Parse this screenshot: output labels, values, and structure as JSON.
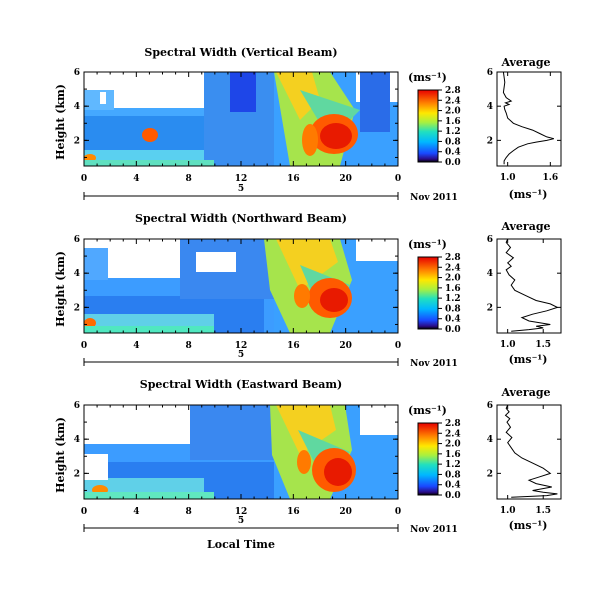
{
  "chart_data": [
    {
      "type": "heatmap",
      "title": "Spectral Width (Vertical Beam)",
      "ylabel": "Height (km)",
      "xticks": [
        "0",
        "4",
        "8",
        "12",
        "16",
        "20",
        "0"
      ],
      "yticks": [
        "2",
        "4",
        "6"
      ],
      "date_label": "Nov 2011",
      "day_label": "5",
      "colorbar_unit": "(ms⁻¹)",
      "colorbar_ticks": [
        "0.0",
        "0.4",
        "0.8",
        "1.2",
        "1.6",
        "2.0",
        "2.4",
        "2.8"
      ],
      "colorbar_range": [
        0.0,
        2.8
      ],
      "time_range_hours": [
        0,
        24
      ],
      "height_range_km": [
        0.5,
        6
      ]
    },
    {
      "type": "heatmap",
      "title": "Spectral Width (Northward Beam)",
      "ylabel": "Height (km)",
      "xticks": [
        "0",
        "4",
        "8",
        "12",
        "16",
        "20",
        "0"
      ],
      "yticks": [
        "2",
        "4",
        "6"
      ],
      "date_label": "Nov 2011",
      "day_label": "5",
      "colorbar_unit": "(ms⁻¹)",
      "colorbar_ticks": [
        "0.0",
        "0.4",
        "0.8",
        "1.2",
        "1.6",
        "2.0",
        "2.4",
        "2.8"
      ],
      "colorbar_range": [
        0.0,
        2.8
      ],
      "time_range_hours": [
        0,
        24
      ],
      "height_range_km": [
        0.5,
        6
      ]
    },
    {
      "type": "heatmap",
      "title": "Spectral Width (Eastward Beam)",
      "ylabel": "Height (km)",
      "xticks": [
        "0",
        "4",
        "8",
        "12",
        "16",
        "20",
        "0"
      ],
      "yticks": [
        "2",
        "4",
        "6"
      ],
      "date_label": "Nov 2011",
      "day_label": "5",
      "xlabel": "Local Time",
      "colorbar_unit": "(ms⁻¹)",
      "colorbar_ticks": [
        "0.0",
        "0.4",
        "0.8",
        "1.2",
        "1.6",
        "2.0",
        "2.4",
        "2.8"
      ],
      "colorbar_range": [
        0.0,
        2.8
      ],
      "time_range_hours": [
        0,
        24
      ],
      "height_range_km": [
        0.5,
        6
      ]
    },
    {
      "type": "line",
      "title": "Average",
      "xlabel": "(ms⁻¹)",
      "xticks": [
        "1.0",
        "1.6"
      ],
      "yticks": [
        "2",
        "4",
        "6"
      ],
      "x": [
        0.95,
        0.95,
        0.98,
        1.02,
        1.08,
        1.15,
        1.28,
        1.4,
        1.55,
        1.65,
        1.55,
        1.45,
        1.35,
        1.2,
        1.08,
        1.0,
        0.98,
        0.96,
        0.95,
        1.02,
        0.97,
        1.05,
        0.98,
        0.94,
        0.95,
        0.96,
        0.95,
        0.94
      ],
      "y": [
        0.6,
        0.8,
        1.0,
        1.2,
        1.4,
        1.6,
        1.8,
        1.9,
        2.0,
        2.1,
        2.2,
        2.4,
        2.6,
        2.8,
        3.0,
        3.3,
        3.6,
        3.8,
        4.0,
        4.1,
        4.2,
        4.3,
        4.5,
        4.8,
        5.1,
        5.4,
        5.7,
        6.0
      ],
      "xlim": [
        0.85,
        1.75
      ],
      "ylim": [
        0.5,
        6
      ]
    },
    {
      "type": "line",
      "title": "Average",
      "xlabel": "(ms⁻¹)",
      "xticks": [
        "1.0",
        "1.5"
      ],
      "yticks": [
        "2",
        "4",
        "6"
      ],
      "x": [
        1.05,
        1.3,
        1.5,
        1.4,
        1.6,
        1.45,
        1.3,
        1.2,
        1.35,
        1.55,
        1.7,
        1.6,
        1.4,
        1.25,
        1.1,
        1.05,
        1.1,
        1.02,
        0.98,
        1.05,
        1.0,
        1.08,
        0.98,
        1.04,
        0.98,
        1.0
      ],
      "y": [
        0.6,
        0.7,
        0.8,
        0.9,
        1.0,
        1.1,
        1.2,
        1.4,
        1.6,
        1.8,
        2.0,
        2.2,
        2.4,
        2.7,
        3.0,
        3.3,
        3.6,
        3.9,
        4.2,
        4.4,
        4.6,
        4.9,
        5.2,
        5.5,
        5.8,
        6.0
      ],
      "xlim": [
        0.85,
        1.75
      ],
      "ylim": [
        0.5,
        6
      ]
    },
    {
      "type": "line",
      "title": "Average",
      "xlabel": "(ms⁻¹)",
      "xticks": [
        "1.0",
        "1.5"
      ],
      "yticks": [
        "2",
        "4",
        "6"
      ],
      "x": [
        1.05,
        1.55,
        1.7,
        1.5,
        1.35,
        1.62,
        1.4,
        1.3,
        1.45,
        1.6,
        1.5,
        1.35,
        1.2,
        1.1,
        1.05,
        1.0,
        1.06,
        0.98,
        1.04,
        0.99,
        1.03,
        0.97,
        1.02,
        0.98,
        1.0
      ],
      "y": [
        0.6,
        0.7,
        0.8,
        0.9,
        1.0,
        1.2,
        1.4,
        1.6,
        1.8,
        2.0,
        2.3,
        2.6,
        2.9,
        3.2,
        3.5,
        3.8,
        4.1,
        4.4,
        4.7,
        5.0,
        5.2,
        5.4,
        5.6,
        5.8,
        6.0
      ],
      "xlim": [
        0.85,
        1.75
      ],
      "ylim": [
        0.5,
        6
      ]
    }
  ]
}
